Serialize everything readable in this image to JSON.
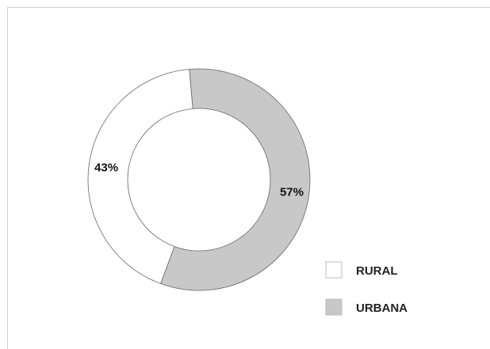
{
  "chart_data": {
    "type": "pie",
    "donut": true,
    "categories": [
      "RURAL",
      "URBANA"
    ],
    "values": [
      43,
      57
    ],
    "labels": [
      "43%",
      "57%"
    ],
    "colors": [
      "#ffffff",
      "#c8c8c8"
    ],
    "title": "",
    "legend_position": "bottom-right",
    "stroke_color": "#666666"
  }
}
